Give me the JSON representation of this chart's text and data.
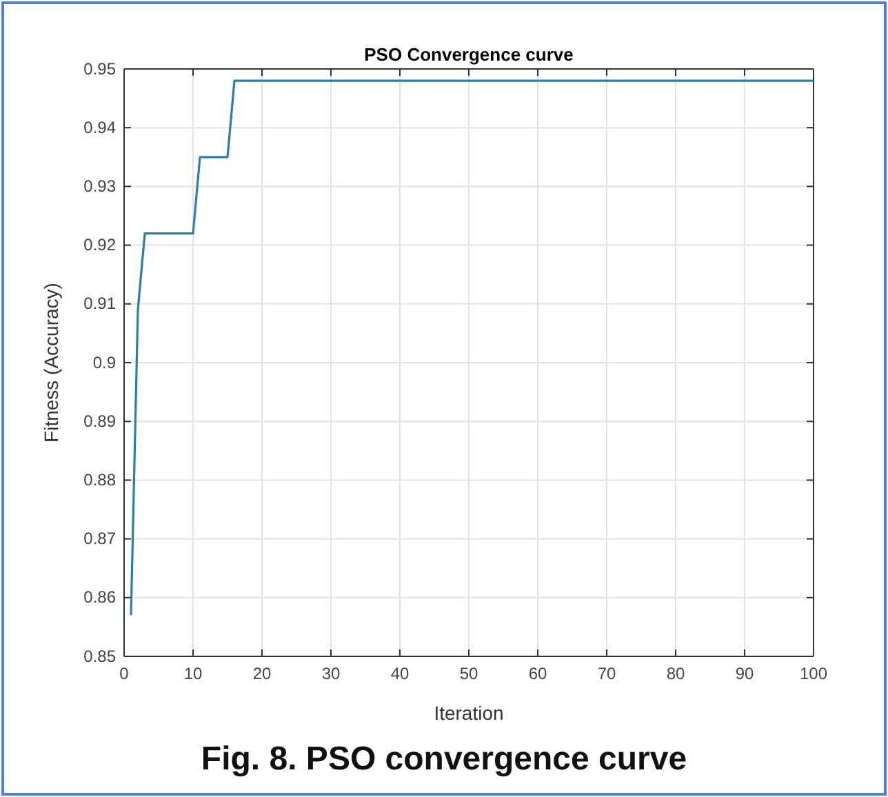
{
  "chart_data": {
    "type": "line",
    "title": "PSO Convergence curve",
    "xlabel": "Iteration",
    "ylabel": "Fitness (Accuracy)",
    "annotations": [
      "Fig. 8. PSO convergence curve"
    ],
    "x": [
      1,
      2,
      3,
      10,
      11,
      15,
      16,
      100
    ],
    "series": [
      {
        "color": "#2b7ea8",
        "values": [
          0.857,
          0.909,
          0.922,
          0.922,
          0.935,
          0.935,
          0.948,
          0.948
        ]
      }
    ],
    "xlim": [
      0,
      100
    ],
    "xticks": [
      0,
      10,
      20,
      30,
      40,
      50,
      60,
      70,
      80,
      90,
      100
    ],
    "ylim": [
      0.85,
      0.95
    ],
    "yticks": [
      {
        "value": 0.85,
        "label": "0.85"
      },
      {
        "value": 0.86,
        "label": "0.86"
      },
      {
        "value": 0.87,
        "label": "0.87"
      },
      {
        "value": 0.88,
        "label": "0.88"
      },
      {
        "value": 0.89,
        "label": "0.89"
      },
      {
        "value": 0.9,
        "label": "0.9"
      },
      {
        "value": 0.91,
        "label": "0.91"
      },
      {
        "value": 0.92,
        "label": "0.92"
      },
      {
        "value": 0.93,
        "label": "0.93"
      },
      {
        "value": 0.94,
        "label": "0.94"
      },
      {
        "value": 0.95,
        "label": "0.95"
      }
    ],
    "grid": true,
    "marker": "none",
    "line_style": "solid"
  }
}
